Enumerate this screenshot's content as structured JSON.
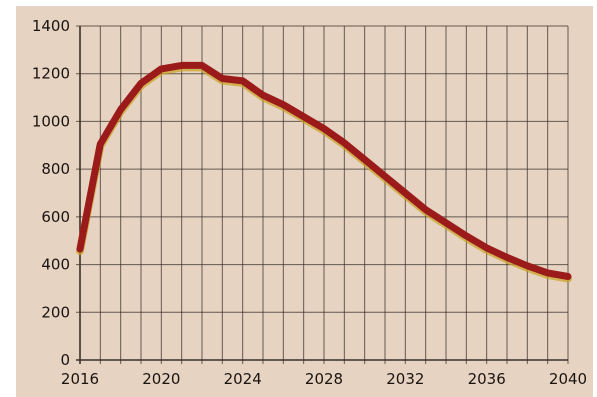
{
  "colors": {
    "background": "#e7d3c2",
    "grid": "#3a2f28",
    "line": "#9b1b1b",
    "line_highlight": "#c8a21f",
    "text": "#1a1410"
  },
  "chart_data": {
    "type": "line",
    "title": "",
    "xlabel": "",
    "ylabel": "",
    "xlim": [
      2016,
      2040
    ],
    "ylim": [
      0,
      1400
    ],
    "x_ticks": [
      2016,
      2020,
      2024,
      2028,
      2032,
      2036,
      2040
    ],
    "x_tick_labels": [
      "2016",
      "2020",
      "2024",
      "2028",
      "2032",
      "2036",
      "2040"
    ],
    "y_ticks": [
      0,
      200,
      400,
      600,
      800,
      1000,
      1200,
      1400
    ],
    "y_tick_labels": [
      "0",
      "200",
      "400",
      "600",
      "800",
      "1000",
      "1200",
      "1400"
    ],
    "grid": true,
    "x_minor_step": 1,
    "y_minor_step": 200,
    "series": [
      {
        "x": [
          2016,
          2017,
          2018,
          2019,
          2020,
          2021,
          2022,
          2023,
          2024,
          2025,
          2026,
          2027,
          2028,
          2029,
          2030,
          2031,
          2032,
          2033,
          2034,
          2035,
          2036,
          2037,
          2038,
          2039,
          2040
        ],
        "y": [
          465,
          905,
          1050,
          1160,
          1220,
          1235,
          1235,
          1180,
          1170,
          1110,
          1070,
          1020,
          970,
          910,
          840,
          770,
          700,
          630,
          575,
          520,
          470,
          430,
          395,
          365,
          350
        ]
      }
    ]
  }
}
